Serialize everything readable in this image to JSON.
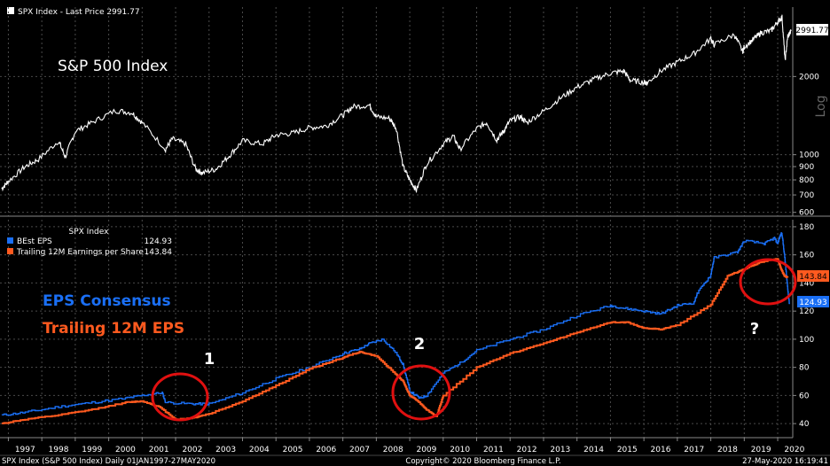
{
  "window": {
    "header_label": "SPX Index - Last Price 2991.77",
    "footer_left": "SPX Index (S&P 500 Index)  Daily 01JAN1997-27MAY2020",
    "footer_center": "Copyright© 2020 Bloomberg Finance L.P.",
    "footer_right": "27-May-2020 16:19:41"
  },
  "colors": {
    "background": "#000000",
    "price_line": "#ffffff",
    "eps_consensus": "#1a6ff5",
    "trailing_eps": "#ff5a1f",
    "annotation_circle": "#e01010",
    "grid": "#555555"
  },
  "chart_data": [
    {
      "type": "line",
      "title": "S&P 500 Index",
      "ylabel": "Log",
      "yscale": "log",
      "ylim": [
        580,
        3700
      ],
      "xlim": [
        1996.75,
        2020.45
      ],
      "grid": true,
      "x_ticks": [
        "1997",
        "1998",
        "1999",
        "2000",
        "2001",
        "2002",
        "2003",
        "2004",
        "2005",
        "2006",
        "2007",
        "2008",
        "2009",
        "2010",
        "2011",
        "2012",
        "2013",
        "2014",
        "2015",
        "2016",
        "2017",
        "2018",
        "2019",
        "2020"
      ],
      "y_ticks": [
        600,
        700,
        800,
        900,
        1000,
        2000
      ],
      "last_value_label": "2991.77",
      "series": [
        {
          "name": "SPX Index - Last Price",
          "color": "#ffffff",
          "x": [
            1996.8,
            1997.0,
            1997.5,
            1997.9,
            1998.5,
            1998.7,
            1999.0,
            1999.5,
            2000.2,
            2000.7,
            2001.0,
            2001.7,
            2001.9,
            2002.3,
            2002.6,
            2002.8,
            2003.2,
            2003.6,
            2004.0,
            2004.6,
            2005.0,
            2005.5,
            2006.0,
            2006.5,
            2007.0,
            2007.3,
            2007.8,
            2008.0,
            2008.4,
            2008.6,
            2008.8,
            2009.0,
            2009.2,
            2009.5,
            2010.0,
            2010.3,
            2010.5,
            2011.0,
            2011.3,
            2011.6,
            2011.8,
            2012.0,
            2012.3,
            2012.5,
            2013.0,
            2013.5,
            2014.0,
            2014.5,
            2015.0,
            2015.4,
            2015.6,
            2016.0,
            2016.1,
            2016.5,
            2017.0,
            2017.5,
            2018.0,
            2018.1,
            2018.7,
            2018.95,
            2019.0,
            2019.3,
            2019.5,
            2019.8,
            2020.0,
            2020.13,
            2020.22,
            2020.3,
            2020.4
          ],
          "y": [
            740,
            790,
            900,
            960,
            1130,
            980,
            1230,
            1330,
            1480,
            1450,
            1330,
            1050,
            1150,
            1100,
            880,
            850,
            880,
            990,
            1130,
            1100,
            1190,
            1210,
            1270,
            1290,
            1420,
            1530,
            1550,
            1400,
            1380,
            1260,
            900,
            800,
            730,
            920,
            1100,
            1180,
            1050,
            1260,
            1330,
            1140,
            1230,
            1350,
            1400,
            1330,
            1470,
            1650,
            1820,
            1950,
            2060,
            2100,
            1930,
            1900,
            1890,
            2100,
            2270,
            2450,
            2800,
            2650,
            2900,
            2500,
            2600,
            2800,
            2950,
            3000,
            3250,
            3380,
            2300,
            2850,
            2990
          ]
        }
      ]
    },
    {
      "type": "line",
      "title": "SPX Index",
      "ylim": [
        30,
        185
      ],
      "xlim": [
        1996.75,
        2020.45
      ],
      "grid": true,
      "legend_placement": "top-left",
      "x_ticks": [
        "1997",
        "1998",
        "1999",
        "2000",
        "2001",
        "2002",
        "2003",
        "2004",
        "2005",
        "2006",
        "2007",
        "2008",
        "2009",
        "2010",
        "2011",
        "2012",
        "2013",
        "2014",
        "2015",
        "2016",
        "2017",
        "2018",
        "2019",
        "2020"
      ],
      "y_ticks": [
        40,
        60,
        80,
        100,
        120,
        140,
        160,
        180
      ],
      "annotations": [
        {
          "text": "EPS Consensus",
          "color": "#1a6ff5"
        },
        {
          "text": "Trailing 12M EPS",
          "color": "#ff5a1f"
        },
        {
          "text": "1",
          "color": "#ffffff"
        },
        {
          "text": "2",
          "color": "#ffffff"
        },
        {
          "text": "?",
          "color": "#ffffff"
        }
      ],
      "series": [
        {
          "name": "BEst EPS",
          "last_value": "124.93",
          "color": "#1a6ff5",
          "x": [
            1996.8,
            1997.5,
            1998.5,
            1999.5,
            2000.5,
            2001.0,
            2001.6,
            2001.7,
            2002.5,
            2003.0,
            2004.0,
            2005.0,
            2006.0,
            2007.0,
            2007.5,
            2007.8,
            2008.2,
            2008.6,
            2008.8,
            2009.0,
            2009.3,
            2009.5,
            2010.0,
            2010.5,
            2011.0,
            2012.0,
            2013.0,
            2014.0,
            2015.0,
            2015.4,
            2016.0,
            2016.5,
            2017.0,
            2017.5,
            2017.6,
            2018.0,
            2018.1,
            2018.8,
            2019.0,
            2019.6,
            2019.9,
            2020.0,
            2020.05,
            2020.12,
            2020.2,
            2020.3,
            2020.35
          ],
          "y": [
            46,
            48,
            52,
            55,
            58,
            60,
            62,
            55,
            54,
            54,
            62,
            72,
            80,
            90,
            93,
            97,
            100,
            90,
            82,
            63,
            58,
            60,
            76,
            83,
            92,
            100,
            107,
            117,
            124,
            122,
            120,
            118,
            124,
            126,
            133,
            146,
            158,
            162,
            170,
            168,
            172,
            168,
            172,
            176,
            160,
            135,
            125
          ]
        },
        {
          "name": "Trailing 12M Earnings per Share",
          "last_value": "143.84",
          "color": "#ff5a1f",
          "x": [
            1996.8,
            1997.5,
            1998.5,
            1999.5,
            2000.5,
            2001.0,
            2001.5,
            2002.0,
            2002.5,
            2003.0,
            2004.0,
            2005.0,
            2006.0,
            2007.0,
            2007.5,
            2008.0,
            2008.5,
            2008.8,
            2009.0,
            2009.2,
            2009.5,
            2009.8,
            2010.0,
            2011.0,
            2012.0,
            2013.0,
            2014.0,
            2015.0,
            2015.5,
            2016.0,
            2016.5,
            2017.0,
            2018.0,
            2018.5,
            2019.0,
            2019.5,
            2020.0,
            2020.1,
            2020.2,
            2020.3
          ],
          "y": [
            40,
            43,
            46,
            50,
            55,
            56,
            52,
            43,
            44,
            47,
            56,
            67,
            79,
            87,
            91,
            88,
            77,
            70,
            60,
            57,
            50,
            45,
            60,
            80,
            90,
            97,
            105,
            112,
            112,
            108,
            107,
            110,
            125,
            145,
            150,
            155,
            157,
            150,
            145,
            143.84
          ]
        }
      ]
    }
  ]
}
